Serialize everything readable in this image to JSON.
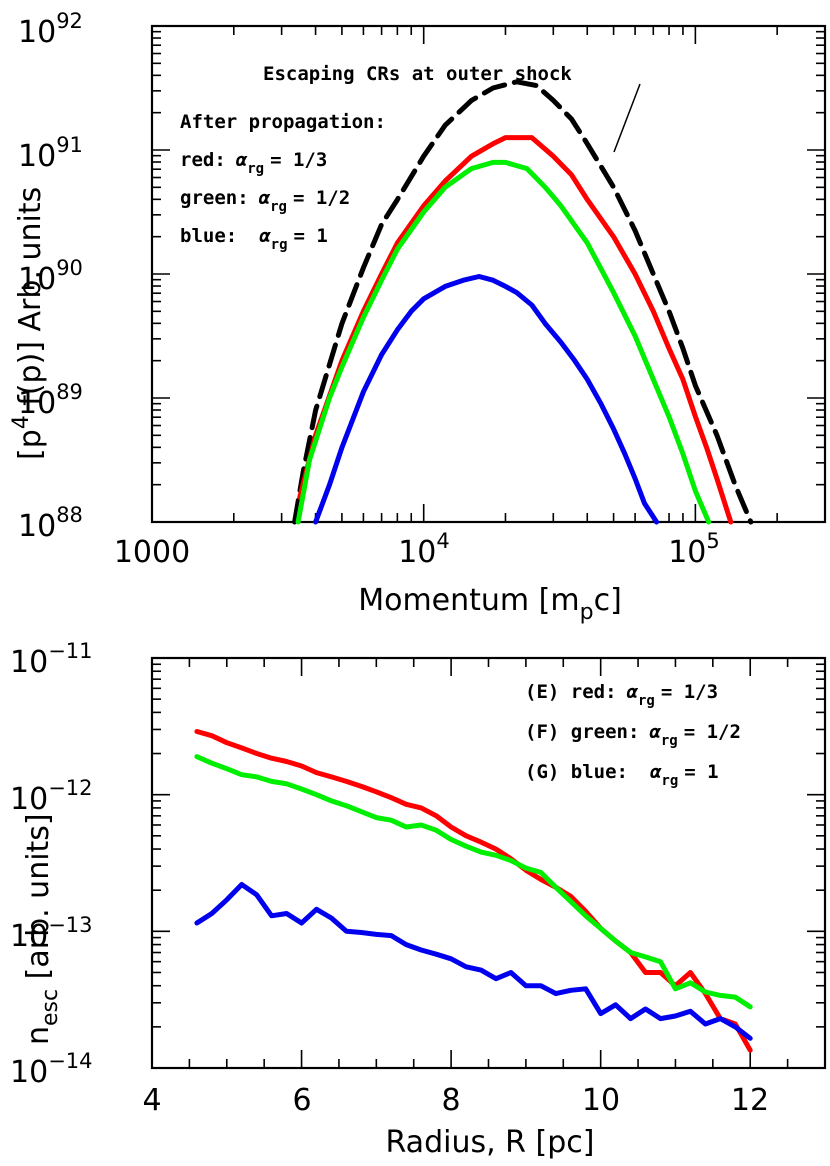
{
  "chart_data": [
    {
      "type": "line",
      "xscale": "log",
      "yscale": "log",
      "xlim": [
        1000,
        300000
      ],
      "ylim": [
        1e+88,
        1e+92
      ],
      "xlabel": "Momentum [m_pc]",
      "ylabel": "[p^4 f(p)] Arb. units",
      "x_ticks": [
        {
          "v": 1000,
          "base": "1000",
          "exp": ""
        },
        {
          "v": 10000,
          "base": "10",
          "exp": "4"
        },
        {
          "v": 100000,
          "base": "10",
          "exp": "5"
        }
      ],
      "y_ticks": [
        {
          "v": 88,
          "base": "10",
          "exp": "88"
        },
        {
          "v": 89,
          "base": "10",
          "exp": "89"
        },
        {
          "v": 90,
          "base": "10",
          "exp": "90"
        },
        {
          "v": 91,
          "base": "10",
          "exp": "91"
        },
        {
          "v": 92,
          "base": "10",
          "exp": "92"
        }
      ],
      "annotations": {
        "escaping": "Escaping CRs at outer shock",
        "after": "After propagation:",
        "red_label": "red:",
        "green_label": "green:",
        "blue_label": "blue:",
        "red_value": "= 1/3",
        "green_value": "= 1/2",
        "blue_value": "= 1",
        "alpha_symbol": "α",
        "alpha_subscript": "rg"
      },
      "series": [
        {
          "color": "#000000",
          "dash": true,
          "x": [
            3350,
            3600,
            4000,
            5000,
            6000,
            7000,
            8000,
            10000,
            12000,
            15000,
            18000,
            22000,
            26000,
            30000,
            35000,
            40000,
            50000,
            60000,
            70000,
            80000,
            90000,
            100000,
            120000,
            140000,
            160000
          ],
          "y": [
            88.0,
            88.4,
            88.9,
            89.6,
            90.05,
            90.4,
            90.6,
            90.95,
            91.2,
            91.4,
            91.5,
            91.55,
            91.52,
            91.4,
            91.25,
            91.05,
            90.7,
            90.35,
            90.0,
            89.7,
            89.4,
            89.1,
            88.7,
            88.3,
            88.0
          ]
        },
        {
          "color": "#ff0000",
          "dash": false,
          "x": [
            3500,
            4000,
            5000,
            6000,
            7000,
            8000,
            10000,
            12000,
            15000,
            18000,
            20000,
            25000,
            30000,
            35000,
            40000,
            50000,
            60000,
            70000,
            80000,
            90000,
            100000,
            110000,
            120000,
            135000
          ],
          "y": [
            88.2,
            88.7,
            89.3,
            89.7,
            90.0,
            90.25,
            90.55,
            90.75,
            90.95,
            91.05,
            91.1,
            91.1,
            90.95,
            90.8,
            90.6,
            90.3,
            90.0,
            89.7,
            89.4,
            89.15,
            88.85,
            88.6,
            88.35,
            88.0
          ]
        },
        {
          "color": "#00ee00",
          "dash": false,
          "x": [
            3450,
            3800,
            4500,
            5000,
            6000,
            7000,
            8000,
            10000,
            12000,
            15000,
            18000,
            20000,
            24000,
            28000,
            32000,
            40000,
            50000,
            60000,
            70000,
            80000,
            90000,
            100000,
            112000
          ],
          "y": [
            88.0,
            88.5,
            89.0,
            89.25,
            89.65,
            89.95,
            90.2,
            90.5,
            90.7,
            90.85,
            90.9,
            90.9,
            90.85,
            90.7,
            90.55,
            90.25,
            89.85,
            89.5,
            89.15,
            88.85,
            88.55,
            88.25,
            88.0
          ]
        },
        {
          "color": "#0000ee",
          "dash": false,
          "x": [
            4000,
            4500,
            5000,
            6000,
            7000,
            8000,
            9000,
            10000,
            12000,
            14000,
            16000,
            18000,
            20000,
            22000,
            25000,
            28000,
            32000,
            36000,
            40000,
            45000,
            50000,
            55000,
            60000,
            65000,
            72000
          ],
          "y": [
            88.0,
            88.3,
            88.6,
            89.05,
            89.35,
            89.55,
            89.7,
            89.8,
            89.9,
            89.95,
            89.98,
            89.95,
            89.9,
            89.85,
            89.75,
            89.6,
            89.45,
            89.3,
            89.15,
            88.95,
            88.75,
            88.55,
            88.35,
            88.15,
            87.9
          ]
        }
      ]
    },
    {
      "type": "line",
      "yscale": "log",
      "xlim": [
        4,
        13
      ],
      "ylim": [
        1e-14,
        1e-11
      ],
      "xlabel": "Radius, R [pc]",
      "ylabel": "n_esc [arb. units]",
      "x_ticks": [
        4,
        6,
        8,
        10,
        12
      ],
      "y_ticks": [
        {
          "v": -14,
          "base": "10",
          "exp": "−14"
        },
        {
          "v": -13,
          "base": "10",
          "exp": "−13"
        },
        {
          "v": -12,
          "base": "10",
          "exp": "−12"
        },
        {
          "v": -11,
          "base": "10",
          "exp": "−11"
        }
      ],
      "annotations": {
        "red_label": "(E) red:",
        "green_label": "(F) green:",
        "blue_label": "(G) blue:",
        "red_value": "= 1/3",
        "green_value": "= 1/2",
        "blue_value": "= 1",
        "alpha_symbol": "α",
        "alpha_subscript": "rg"
      },
      "series": [
        {
          "color": "#ff0000",
          "x": [
            4.6,
            4.8,
            5.0,
            5.2,
            5.4,
            5.6,
            5.8,
            6.0,
            6.2,
            6.4,
            6.6,
            6.8,
            7.0,
            7.2,
            7.4,
            7.6,
            7.8,
            8.0,
            8.2,
            8.4,
            8.6,
            8.8,
            9.0,
            9.2,
            9.4,
            9.6,
            9.8,
            10.0,
            10.2,
            10.4,
            10.6,
            10.8,
            11.0,
            11.2,
            11.4,
            11.6,
            11.8,
            12.0
          ],
          "y": [
            2.9e-12,
            2.7e-12,
            2.4e-12,
            2.2e-12,
            2e-12,
            1.85e-12,
            1.75e-12,
            1.62e-12,
            1.45e-12,
            1.35e-12,
            1.25e-12,
            1.15e-12,
            1.05e-12,
            9.5e-13,
            8.5e-13,
            8e-13,
            7e-13,
            5.8e-13,
            5e-13,
            4.5e-13,
            4e-13,
            3.4e-13,
            2.8e-13,
            2.4e-13,
            2.1e-13,
            1.8e-13,
            1.4e-13,
            1.05e-13,
            8.5e-14,
            7e-14,
            5e-14,
            5e-14,
            4e-14,
            5e-14,
            3.5e-14,
            2.3e-14,
            2.1e-14,
            1.35e-14
          ]
        },
        {
          "color": "#00ee00",
          "x": [
            4.6,
            4.8,
            5.0,
            5.2,
            5.4,
            5.6,
            5.8,
            6.0,
            6.2,
            6.4,
            6.6,
            6.8,
            7.0,
            7.2,
            7.4,
            7.6,
            7.8,
            8.0,
            8.2,
            8.4,
            8.6,
            8.8,
            9.0,
            9.2,
            9.4,
            9.6,
            9.8,
            10.0,
            10.2,
            10.4,
            10.6,
            10.8,
            11.0,
            11.2,
            11.4,
            11.6,
            11.8,
            12.0
          ],
          "y": [
            1.9e-12,
            1.7e-12,
            1.55e-12,
            1.4e-12,
            1.35e-12,
            1.25e-12,
            1.2e-12,
            1.1e-12,
            1e-12,
            9e-13,
            8.3e-13,
            7.5e-13,
            6.8e-13,
            6.5e-13,
            5.8e-13,
            6e-13,
            5.5e-13,
            4.7e-13,
            4.2e-13,
            3.8e-13,
            3.6e-13,
            3.3e-13,
            2.9e-13,
            2.7e-13,
            2.1e-13,
            1.65e-13,
            1.3e-13,
            1.05e-13,
            8.5e-14,
            7e-14,
            6.5e-14,
            6e-14,
            3.8e-14,
            4.2e-14,
            3.6e-14,
            3.4e-14,
            3.3e-14,
            2.8e-14
          ]
        },
        {
          "color": "#0000ee",
          "x": [
            4.6,
            4.8,
            5.0,
            5.2,
            5.4,
            5.6,
            5.8,
            6.0,
            6.2,
            6.4,
            6.6,
            6.8,
            7.0,
            7.2,
            7.4,
            7.6,
            7.8,
            8.0,
            8.2,
            8.4,
            8.6,
            8.8,
            9.0,
            9.2,
            9.4,
            9.6,
            9.8,
            10.0,
            10.2,
            10.4,
            10.6,
            10.8,
            11.0,
            11.2,
            11.4,
            11.6,
            11.8,
            12.0
          ],
          "y": [
            1.15e-13,
            1.35e-13,
            1.7e-13,
            2.2e-13,
            1.85e-13,
            1.3e-13,
            1.35e-13,
            1.15e-13,
            1.45e-13,
            1.25e-13,
            1e-13,
            9.8e-14,
            9.5e-14,
            9.3e-14,
            8e-14,
            7.3e-14,
            6.8e-14,
            6.3e-14,
            5.5e-14,
            5.2e-14,
            4.5e-14,
            5e-14,
            4e-14,
            4e-14,
            3.5e-14,
            3.7e-14,
            3.8e-14,
            2.5e-14,
            2.9e-14,
            2.3e-14,
            2.7e-14,
            2.3e-14,
            2.4e-14,
            2.6e-14,
            2.1e-14,
            2.3e-14,
            2e-14,
            1.65e-14
          ]
        }
      ]
    }
  ]
}
